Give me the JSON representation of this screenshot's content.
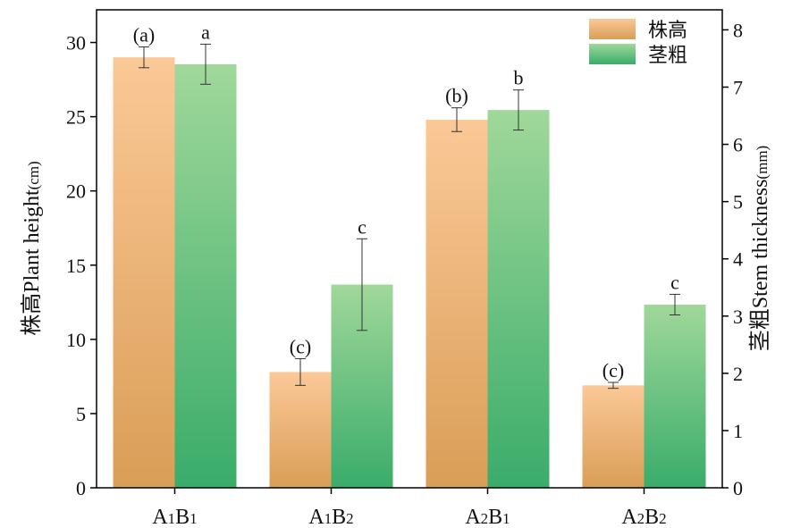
{
  "chart_data": {
    "type": "bar",
    "categories": [
      {
        "main": "A",
        "sub1": "1",
        "mid": "B",
        "sub2": "1"
      },
      {
        "main": "A",
        "sub1": "1",
        "mid": "B",
        "sub2": "2"
      },
      {
        "main": "A",
        "sub1": "2",
        "mid": "B",
        "sub2": "1"
      },
      {
        "main": "A",
        "sub1": "2",
        "mid": "B",
        "sub2": "2"
      }
    ],
    "series": [
      {
        "name": "株高",
        "axis": "left",
        "values": [
          29.0,
          7.8,
          24.8,
          6.9
        ],
        "errors": [
          0.7,
          0.9,
          0.8,
          0.2
        ],
        "labels": [
          "(a)",
          "(c)",
          "(b)",
          "(c)"
        ],
        "color_top": "#fbc897",
        "color_bottom": "#d99e57"
      },
      {
        "name": "茎粗",
        "axis": "right",
        "values": [
          7.4,
          3.55,
          6.6,
          3.2
        ],
        "errors": [
          0.35,
          0.8,
          0.35,
          0.18
        ],
        "labels": [
          "a",
          "c",
          "b",
          "c"
        ],
        "color_top": "#a0d89a",
        "color_bottom": "#3aac6a"
      }
    ],
    "left_axis": {
      "label_cn": "株高",
      "label_en": "Plant height",
      "unit": "(cm)",
      "range": [
        0,
        32.2
      ],
      "ticks": [
        0,
        5,
        10,
        15,
        20,
        25,
        30
      ]
    },
    "right_axis": {
      "label_cn": "茎粗",
      "label_en": "Stem thickness",
      "unit": "(mm)",
      "range": [
        0,
        8.35
      ],
      "ticks": [
        0,
        1,
        2,
        3,
        4,
        5,
        6,
        7,
        8
      ]
    },
    "legend_position": "top-right",
    "grid": false
  }
}
